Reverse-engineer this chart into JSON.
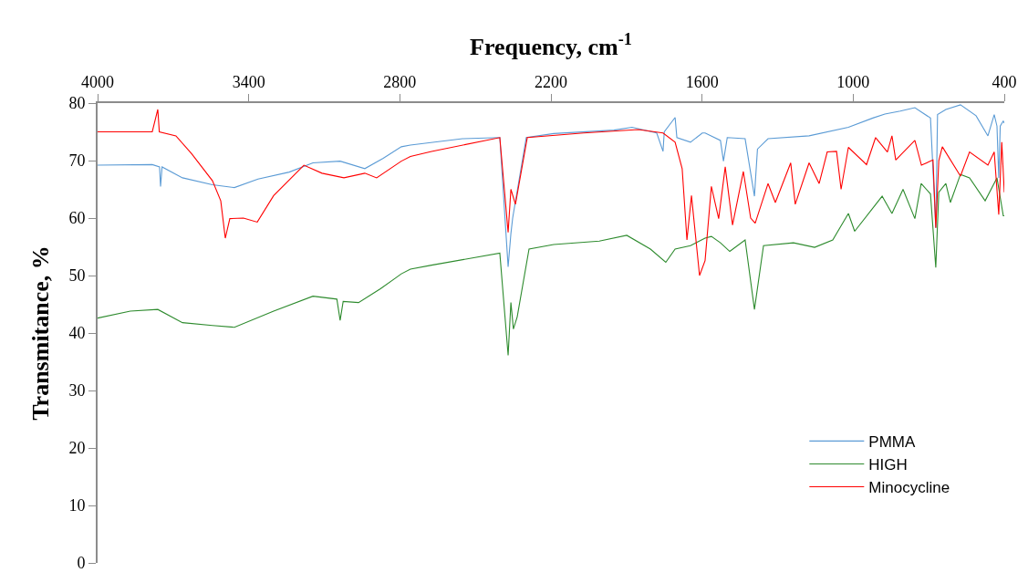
{
  "chart_data": {
    "type": "line",
    "xlabel": "Frequency, cm$^{-1}$",
    "ylabel": "Transmitance, %",
    "xlim": [
      4000,
      400
    ],
    "xticks": [
      4000,
      3400,
      2800,
      2200,
      1600,
      1000,
      400
    ],
    "ylim": [
      0,
      80
    ],
    "yticks": [
      0,
      10,
      20,
      30,
      40,
      50,
      60,
      70,
      80
    ],
    "grid": false,
    "legend": "bottom right",
    "marker": "none",
    "line_style": "solid",
    "series": [
      {
        "name": "PMMA",
        "color": "#5b9bd5",
        "x": [
          4000,
          3783,
          3754,
          3750,
          3744,
          3663,
          3544,
          3457,
          3363,
          3239,
          3145,
          3037,
          2939,
          2866,
          2794,
          2758,
          2551,
          2403,
          2370,
          2359,
          2352,
          2298,
          2189,
          1950,
          1878,
          1780,
          1755,
          1750,
          1707,
          1700,
          1646,
          1599,
          1588,
          1527,
          1515,
          1500,
          1429,
          1392,
          1380,
          1338,
          1175,
          1019,
          922,
          874,
          813,
          755,
          693,
          672,
          665,
          632,
          574,
          512,
          465,
          440,
          429,
          422,
          416,
          404,
          400
        ],
        "values": [
          69.2,
          69.3,
          68.9,
          65.5,
          68.9,
          67,
          65.8,
          65.3,
          66.8,
          68,
          69.6,
          69.9,
          68.6,
          70.4,
          72.4,
          72.7,
          73.8,
          74,
          51.5,
          57.3,
          60,
          74,
          74.7,
          75.3,
          75.8,
          74.8,
          71.6,
          75,
          77.5,
          74,
          73.2,
          74.8,
          74.8,
          73.5,
          69.9,
          74,
          73.8,
          63.8,
          72,
          73.8,
          74.3,
          75.8,
          77.4,
          78.1,
          78.6,
          79.2,
          77.4,
          58.3,
          78,
          78.9,
          79.7,
          77.8,
          74.3,
          78,
          76,
          67,
          76,
          76.9,
          76.5
        ]
      },
      {
        "name": "HIGH",
        "color": "#2e8b2e",
        "x": [
          4000,
          3870,
          3761,
          3663,
          3544,
          3457,
          3301,
          3145,
          3050,
          3037,
          3025,
          2964,
          2877,
          2819,
          2794,
          2758,
          2674,
          2403,
          2370,
          2359,
          2349,
          2334,
          2287,
          2189,
          2008,
          1899,
          1805,
          1744,
          1707,
          1646,
          1588,
          1563,
          1527,
          1490,
          1429,
          1392,
          1356,
          1237,
          1153,
          1081,
          1019,
          994,
          885,
          846,
          802,
          755,
          730,
          693,
          672,
          660,
          632,
          614,
          574,
          538,
          476,
          429,
          404,
          400
        ],
        "values": [
          42.6,
          43.8,
          44.1,
          41.8,
          41.3,
          41,
          43.8,
          46.4,
          45.9,
          42.2,
          45.5,
          45.3,
          47.7,
          49.5,
          50.3,
          51.1,
          51.8,
          53.9,
          36.1,
          45.3,
          40.7,
          42.8,
          54.6,
          55.4,
          56,
          57,
          54.6,
          52.3,
          54.6,
          55.2,
          56.5,
          56.8,
          55.7,
          54.2,
          56.2,
          44.1,
          55.2,
          55.7,
          54.9,
          56.2,
          60.8,
          57.7,
          63.8,
          60.8,
          65,
          59.9,
          66,
          64.2,
          51.4,
          64.5,
          66,
          62.7,
          67.6,
          67,
          63,
          67,
          60.4,
          60.4
        ]
      },
      {
        "name": "Minocycline",
        "color": "#ff0000",
        "x": [
          4000,
          3783,
          3761,
          3755,
          3689,
          3627,
          3544,
          3511,
          3493,
          3475,
          3421,
          3366,
          3301,
          3181,
          3109,
          3022,
          2939,
          2892,
          2794,
          2758,
          2674,
          2403,
          2370,
          2359,
          2341,
          2294,
          2070,
          1853,
          1755,
          1707,
          1679,
          1660,
          1642,
          1610,
          1588,
          1563,
          1534,
          1508,
          1479,
          1436,
          1407,
          1389,
          1338,
          1309,
          1248,
          1230,
          1175,
          1135,
          1103,
          1066,
          1048,
          1019,
          947,
          911,
          864,
          846,
          831,
          755,
          729,
          683,
          672,
          660,
          646,
          574,
          538,
          465,
          440,
          422,
          410,
          400
        ],
        "values": [
          75,
          75,
          78.9,
          75,
          74.3,
          71.2,
          66.5,
          63,
          56.5,
          59.9,
          60,
          59.3,
          63.9,
          69.2,
          67.8,
          67,
          67.8,
          67,
          69.9,
          70.7,
          71.6,
          74,
          57.5,
          65,
          62.4,
          74,
          74.8,
          75.4,
          74.8,
          73.2,
          68.6,
          56.2,
          63.9,
          50,
          52.6,
          65.5,
          59.9,
          68.9,
          58.8,
          68.1,
          60,
          59.1,
          66,
          62.7,
          69.6,
          62.4,
          69.6,
          66,
          71.5,
          71.6,
          65,
          72.3,
          69.3,
          74,
          71.5,
          74.3,
          70.1,
          73.5,
          69.2,
          70.1,
          58.3,
          70,
          72.4,
          67.3,
          71.5,
          69.2,
          71.5,
          60.6,
          73.2,
          64.5
        ]
      }
    ]
  }
}
